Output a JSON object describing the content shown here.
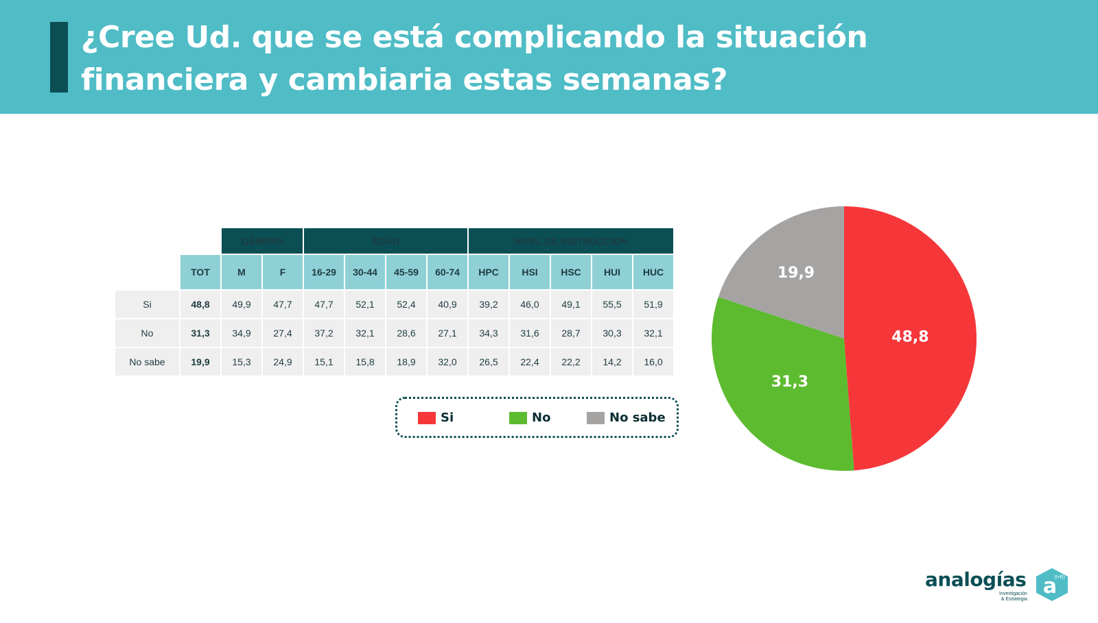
{
  "header": {
    "title_line1": "¿Cree Ud. que se está complicando la situación",
    "title_line2": "financiera y cambiaria estas semanas?"
  },
  "table": {
    "groups": {
      "genero": "GÉNERO",
      "edad": "EDAD",
      "nivel": "NIVEL DE INSTRUCCIÓN"
    },
    "columns": [
      "TOT",
      "M",
      "F",
      "16-29",
      "30-44",
      "45-59",
      "60-74",
      "HPC",
      "HSI",
      "HSC",
      "HUI",
      "HUC"
    ],
    "rows": [
      {
        "label": "Si",
        "values": [
          "48,8",
          "49,9",
          "47,7",
          "47,7",
          "52,1",
          "52,4",
          "40,9",
          "39,2",
          "46,0",
          "49,1",
          "55,5",
          "51,9"
        ]
      },
      {
        "label": "No",
        "values": [
          "31,3",
          "34,9",
          "27,4",
          "37,2",
          "32,1",
          "28,6",
          "27,1",
          "34,3",
          "31,6",
          "28,7",
          "30,3",
          "32,1"
        ]
      },
      {
        "label": "No sabe",
        "values": [
          "19,9",
          "15,3",
          "24,9",
          "15,1",
          "15,8",
          "18,9",
          "32,0",
          "26,5",
          "22,4",
          "22,2",
          "14,2",
          "16,0"
        ]
      }
    ]
  },
  "legend": [
    {
      "label": "Si",
      "color": "#f5373a"
    },
    {
      "label": "No",
      "color": "#5dbb2f"
    },
    {
      "label": "No sabe",
      "color": "#a6a4a3"
    }
  ],
  "chart_data": {
    "type": "pie",
    "categories": [
      "Si",
      "No",
      "No sabe"
    ],
    "values": [
      48.8,
      31.3,
      19.9
    ],
    "labels": [
      "48,8",
      "31,3",
      "19,9"
    ],
    "colors": [
      "#f5373a",
      "#5dbb2f",
      "#a6a4a3"
    ],
    "start": "12 o'clock",
    "direction": "clockwise",
    "legend_position": "left, below table"
  },
  "logo": {
    "name": "analogías",
    "sub_line1": "Investigación",
    "sub_line2": "& Estrategia",
    "mark_letter": "a",
    "mark_sup": "(I+E)"
  }
}
